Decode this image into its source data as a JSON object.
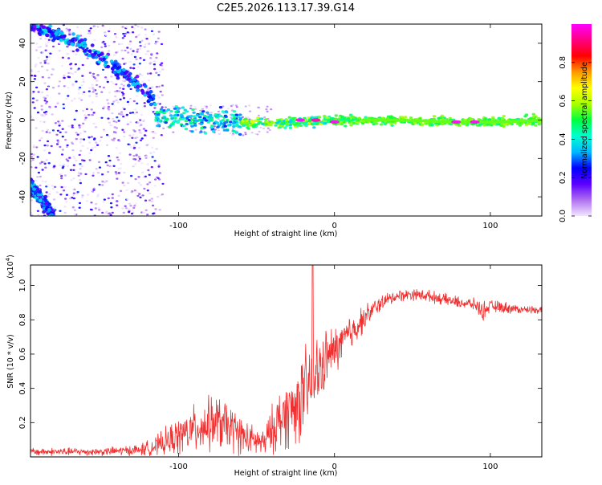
{
  "title": "C2E5.2026.113.17.39.G14",
  "chart_data": [
    {
      "type": "heatmap",
      "name": "spectrogram",
      "xlabel": "Height of straight line (km)",
      "ylabel": "Frequency (Hz)",
      "xlim": [
        -195,
        133
      ],
      "ylim": [
        -50,
        50
      ],
      "xticks": [
        -100,
        0,
        100
      ],
      "yticks": [
        -40,
        -20,
        0,
        20,
        40
      ],
      "colorbar": {
        "label": "Normalized spectral amplitude",
        "range": [
          0,
          1
        ],
        "ticks": [
          "0.0",
          "0.2",
          "0.4",
          "0.6",
          "0.8"
        ],
        "colors": [
          "#f2e6ff",
          "#b070f0",
          "#5a00ff",
          "#0000ff",
          "#00b8ff",
          "#00ffd0",
          "#00ff40",
          "#a8ff00",
          "#ffff00",
          "#ff9900",
          "#ff0000",
          "#ff0080",
          "#ff00ff"
        ]
      },
      "features": [
        {
          "label": "descending track",
          "x": [
            -195,
            -165,
            -140,
            -125,
            -115
          ],
          "y": [
            50,
            40,
            27,
            18,
            8
          ]
        },
        {
          "label": "lower track",
          "x": [
            -195,
            -180
          ],
          "y": [
            -34,
            -50
          ]
        },
        {
          "label": "main line",
          "x": [
            -115,
            -80,
            -40,
            -20,
            0,
            40,
            80,
            110,
            133
          ],
          "y": [
            2,
            0,
            -2,
            -1,
            0,
            0,
            -1,
            -1,
            0
          ]
        }
      ],
      "hot_spots": [
        {
          "x": -22,
          "y": 0,
          "amplitude": 1.0
        },
        {
          "x": -12,
          "y": 0,
          "amplitude": 0.95
        },
        {
          "x": 0,
          "y": -1,
          "amplitude": 1.0
        },
        {
          "x": 78,
          "y": -1,
          "amplitude": 1.0
        },
        {
          "x": 90,
          "y": -1,
          "amplitude": 1.0
        }
      ]
    },
    {
      "type": "line",
      "name": "snr",
      "xlabel": "Height of straight line (km)",
      "ylabel": "SNR (10 * v/v)",
      "y_scale_label": "(x10",
      "y_scale_exp": "4",
      "xlim": [
        -195,
        133
      ],
      "ylim": [
        0,
        1.12
      ],
      "xticks": [
        -100,
        0,
        100
      ],
      "yticks": [
        0.2,
        0.4,
        0.6,
        0.8,
        1.0
      ],
      "color": "#f03030",
      "series": [
        {
          "name": "SNR",
          "x": [
            -195,
            -150,
            -125,
            -115,
            -105,
            -95,
            -85,
            -75,
            -65,
            -55,
            -45,
            -40,
            -35,
            -30,
            -25,
            -20,
            -15,
            -10,
            -5,
            0,
            10,
            20,
            30,
            40,
            50,
            60,
            70,
            80,
            90,
            95,
            100,
            110,
            120,
            133
          ],
          "y": [
            0.03,
            0.03,
            0.04,
            0.06,
            0.1,
            0.14,
            0.18,
            0.2,
            0.16,
            0.1,
            0.08,
            0.16,
            0.22,
            0.26,
            0.3,
            0.36,
            0.42,
            0.5,
            0.58,
            0.62,
            0.72,
            0.82,
            0.9,
            0.94,
            0.95,
            0.94,
            0.92,
            0.9,
            0.89,
            0.85,
            0.88,
            0.87,
            0.86,
            0.86
          ],
          "noise": [
            0.02,
            0.02,
            0.03,
            0.05,
            0.08,
            0.11,
            0.13,
            0.14,
            0.12,
            0.08,
            0.07,
            0.12,
            0.16,
            0.18,
            0.2,
            0.22,
            0.22,
            0.18,
            0.14,
            0.12,
            0.1,
            0.06,
            0.04,
            0.03,
            0.03,
            0.03,
            0.03,
            0.03,
            0.03,
            0.05,
            0.03,
            0.03,
            0.02,
            0.02
          ]
        }
      ],
      "spike": {
        "x": -14,
        "y": 1.15
      }
    }
  ]
}
